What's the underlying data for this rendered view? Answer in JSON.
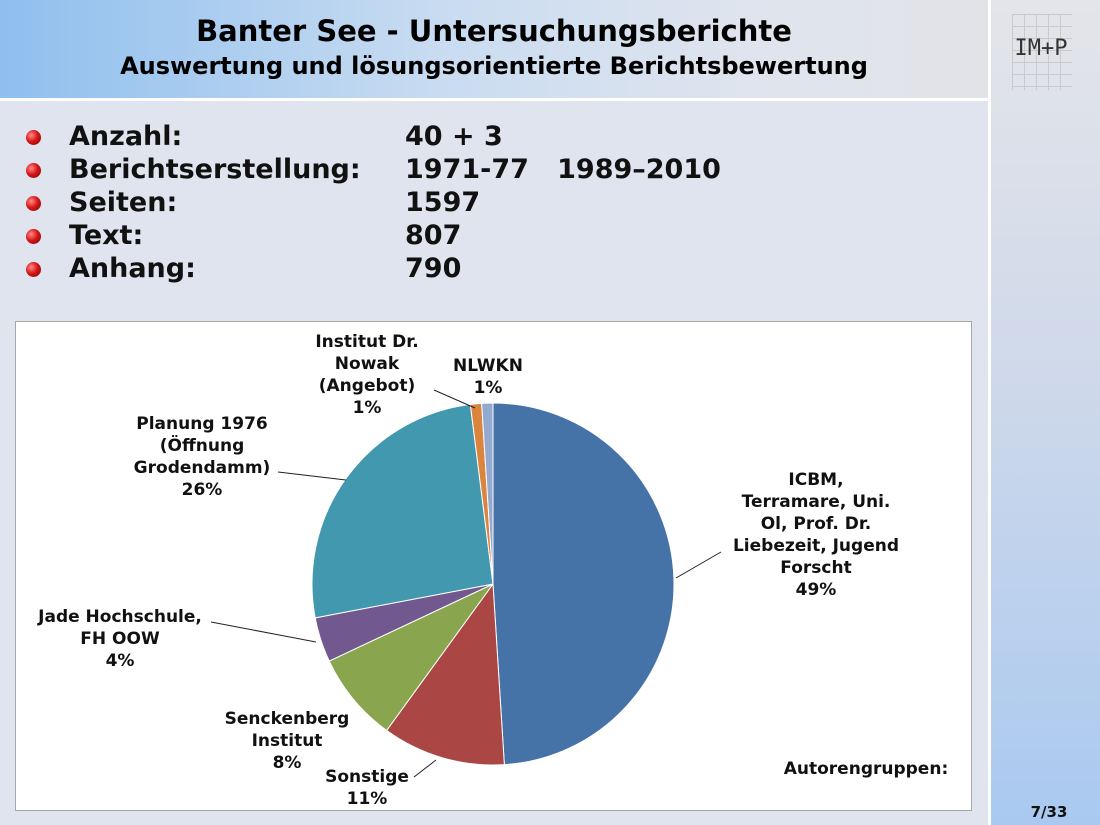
{
  "header": {
    "title": "Banter See - Untersuchungsberichte",
    "subtitle": "Auswertung und lösungsorientierte Berichtsbewertung"
  },
  "logo": "IM+P",
  "page_number": "7/33",
  "bullets": [
    {
      "label": "Anzahl:",
      "value": "40 + 3"
    },
    {
      "label": "Berichtserstellung:",
      "value": "1971-77   1989–2010"
    },
    {
      "label": "Seiten:",
      "value": "1597"
    },
    {
      "label": "Text:",
      "value": "807"
    },
    {
      "label": "Anhang:",
      "value": "790"
    }
  ],
  "chart_data": {
    "type": "pie",
    "title": "Autorengruppen:",
    "slices": [
      {
        "label": "ICBM, Terramare, Uni. Ol, Prof. Dr. Liebezeit, Jugend Forscht",
        "value": 49,
        "display": "49%",
        "color": "#4572a7"
      },
      {
        "label": "Sonstige",
        "value": 11,
        "display": "11%",
        "color": "#aa4643"
      },
      {
        "label": "Senckenberg Institut",
        "value": 8,
        "display": "8%",
        "color": "#89a54e"
      },
      {
        "label": "Jade Hochschule, FH OOW",
        "value": 4,
        "display": "4%",
        "color": "#71588f"
      },
      {
        "label": "Planung 1976 (Öffnung Grodendamm)",
        "value": 26,
        "display": "26%",
        "color": "#4198af"
      },
      {
        "label": "Institut Dr. Nowak (Angebot)",
        "value": 1,
        "display": "1%",
        "color": "#db843d"
      },
      {
        "label": "NLWKN",
        "value": 1,
        "display": "1%",
        "color": "#93a9cf"
      }
    ]
  }
}
